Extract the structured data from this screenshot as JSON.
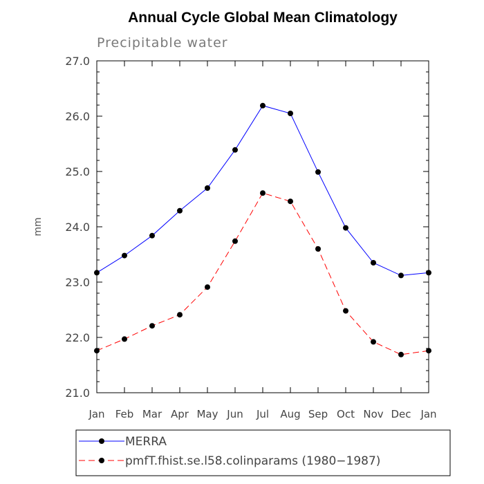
{
  "chart_data": {
    "type": "line",
    "title": "Annual Cycle Global Mean Climatology",
    "subtitle": "Precipitable water",
    "xlabel": "",
    "ylabel": "mm",
    "categories": [
      "Jan",
      "Feb",
      "Mar",
      "Apr",
      "May",
      "Jun",
      "Jul",
      "Aug",
      "Sep",
      "Oct",
      "Nov",
      "Dec",
      "Jan"
    ],
    "ylim": [
      21.0,
      27.0
    ],
    "yticks": [
      21.0,
      22.0,
      23.0,
      24.0,
      25.0,
      26.0,
      27.0
    ],
    "ytick_labels": [
      "21.0",
      "22.0",
      "23.0",
      "24.0",
      "25.0",
      "26.0",
      "27.0"
    ],
    "grid": false,
    "legend_position": "bottom",
    "series": [
      {
        "name": "MERRA",
        "color": "#0000ff",
        "dash": "solid",
        "values": [
          23.17,
          23.48,
          23.84,
          24.29,
          24.7,
          25.39,
          26.19,
          26.05,
          24.99,
          23.98,
          23.35,
          23.12,
          23.17
        ]
      },
      {
        "name": "pmfT.fhist.se.l58.colinparams (1980−1987)",
        "color": "#ff0000",
        "dash": "dashed",
        "values": [
          21.76,
          21.97,
          22.21,
          22.41,
          22.91,
          23.74,
          24.61,
          24.46,
          23.6,
          22.48,
          21.92,
          21.69,
          21.76
        ]
      }
    ]
  }
}
